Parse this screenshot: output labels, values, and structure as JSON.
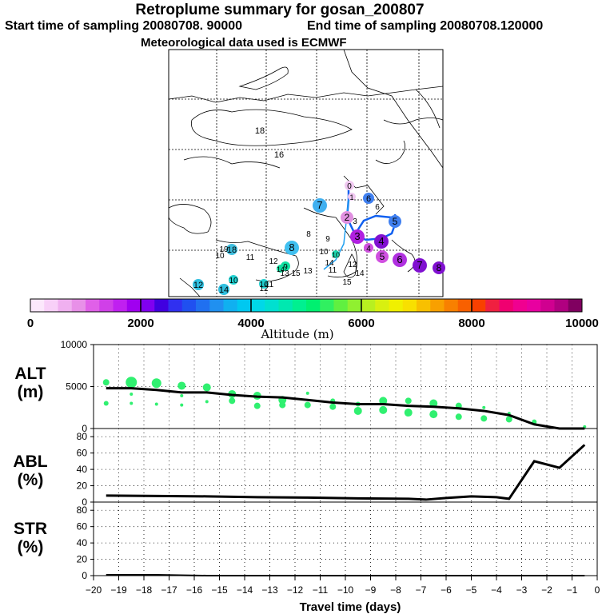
{
  "header": {
    "title": "Retroplume summary for gosan_200807",
    "start": "Start time of sampling 20080708. 90000",
    "end": "End time of sampling 20080708.120000",
    "met": "Meteorological data used is ECMWF"
  },
  "map": {
    "lat_labels": [
      {
        "text": "18"
      },
      {
        "text": "16"
      }
    ],
    "markers": [
      {
        "n": "0",
        "color": "#f0c8f0"
      },
      {
        "n": "1",
        "color": "#f0c8f0"
      },
      {
        "n": "2",
        "color": "#e090e0"
      },
      {
        "n": "3",
        "color": "#b020e0"
      },
      {
        "n": "4",
        "color": "#8010d0"
      },
      {
        "n": "4",
        "color": "#d050e0"
      },
      {
        "n": "5",
        "color": "#d050e0"
      },
      {
        "n": "6",
        "color": "#b030e0"
      },
      {
        "n": "7",
        "color": "#8010d0"
      },
      {
        "n": "8",
        "color": "#8010d0"
      },
      {
        "n": "6",
        "color": "#4080f0"
      },
      {
        "n": "5",
        "color": "#4080f0"
      },
      {
        "n": "7",
        "color": "#40b0f0"
      },
      {
        "n": "8",
        "color": "#40c0f0"
      },
      {
        "n": "18",
        "color": "#40c0e0"
      },
      {
        "n": "12",
        "color": "#30c0e0"
      },
      {
        "n": "14",
        "color": "#30c0e0"
      },
      {
        "n": "10",
        "color": "#20d0d0"
      },
      {
        "n": "16",
        "color": "#20d0d0"
      },
      {
        "n": "9",
        "color": "#10e0a0"
      },
      {
        "n": "14",
        "color": "#10e0a0"
      },
      {
        "n": "10",
        "color": "#20d8b0"
      }
    ],
    "small_labels": [
      {
        "n": "6"
      },
      {
        "n": "8"
      },
      {
        "n": "9"
      },
      {
        "n": "10"
      },
      {
        "n": "11"
      },
      {
        "n": "12"
      },
      {
        "n": "13"
      },
      {
        "n": "14"
      },
      {
        "n": "15"
      },
      {
        "n": "19"
      },
      {
        "n": "10"
      },
      {
        "n": "12"
      },
      {
        "n": "14"
      },
      {
        "n": "11"
      },
      {
        "n": "15"
      },
      {
        "n": "11"
      },
      {
        "n": "12"
      },
      {
        "n": "13"
      },
      {
        "n": "3"
      }
    ]
  },
  "colorbar": {
    "tick_labels": [
      "0",
      "2000",
      "4000",
      "6000",
      "8000",
      "10000"
    ],
    "label": "Altitude (m)",
    "colors": [
      "#fce8fc",
      "#f8d0f8",
      "#f0b0f0",
      "#e890e8",
      "#e060e8",
      "#d040e8",
      "#c020f0",
      "#a000f0",
      "#8000f0",
      "#4000e0",
      "#3030f0",
      "#2050f0",
      "#2070f0",
      "#2090f0",
      "#10b0f0",
      "#00c8f0",
      "#00d8e8",
      "#00e0d0",
      "#00e8b0",
      "#00f090",
      "#00f070",
      "#30f060",
      "#60f040",
      "#90f030",
      "#b8f020",
      "#d8f010",
      "#f0f000",
      "#f8e000",
      "#f8c000",
      "#f8a000",
      "#f88000",
      "#f86000",
      "#f84000",
      "#f02040",
      "#f00070",
      "#f00090",
      "#e800a0",
      "#d00090",
      "#b00080",
      "#800060"
    ]
  },
  "panels": {
    "alt_label": "ALT\n(m)",
    "abl_label": "ABL\n(%)",
    "str_label": "STR\n(%)",
    "xlabel": "Travel time (days)",
    "x_ticks": [
      -20,
      -19,
      -18,
      -17,
      -16,
      -15,
      -14,
      -13,
      -12,
      -11,
      -10,
      -9,
      -8,
      -7,
      -6,
      -5,
      -4,
      -3,
      -2,
      -1,
      0
    ],
    "alt_ticks": [
      0,
      5000,
      10000
    ],
    "pct_ticks": [
      0,
      20,
      40,
      60,
      80
    ]
  },
  "chart_data": [
    {
      "type": "line",
      "title": "ALT",
      "ylabel": "ALT (m)",
      "xlabel": "Travel time (days)",
      "xlim": [
        -20,
        0
      ],
      "ylim": [
        0,
        10000
      ],
      "series": [
        {
          "name": "mean altitude",
          "x": [
            -19.5,
            -18.5,
            -17.5,
            -16.5,
            -15.5,
            -14.5,
            -13.5,
            -12.5,
            -11.5,
            -10.5,
            -9.5,
            -8.5,
            -7.5,
            -6.5,
            -5.5,
            -4.5,
            -3.5,
            -2.5,
            -1.5,
            -0.5
          ],
          "y": [
            4800,
            4800,
            4600,
            4300,
            4300,
            4000,
            3800,
            3700,
            3400,
            3100,
            2900,
            2900,
            2700,
            2600,
            2400,
            2100,
            1600,
            500,
            0,
            0
          ]
        },
        {
          "name": "cluster points",
          "x": [
            -19.5,
            -19.5,
            -18.5,
            -18.5,
            -18.5,
            -17.5,
            -17.5,
            -16.5,
            -16.5,
            -16.5,
            -15.5,
            -15.5,
            -14.5,
            -14.5,
            -13.5,
            -13.5,
            -12.5,
            -12.5,
            -11.5,
            -11.5,
            -10.5,
            -10.5,
            -9.5,
            -9.5,
            -8.5,
            -8.5,
            -7.5,
            -7.5,
            -6.5,
            -6.5,
            -5.5,
            -5.5,
            -4.5,
            -4.5,
            -3.5,
            -3.5,
            -2.5,
            -0.5
          ],
          "y": [
            5500,
            3000,
            5500,
            4100,
            3000,
            5400,
            2900,
            5100,
            3900,
            2800,
            4900,
            3200,
            4100,
            3300,
            3900,
            2700,
            3400,
            2800,
            4200,
            2800,
            3300,
            2600,
            2900,
            2100,
            3300,
            2200,
            3300,
            1900,
            3000,
            1700,
            2700,
            1400,
            2500,
            1200,
            1800,
            1100,
            800,
            200
          ],
          "sizes": [
            4,
            3,
            7,
            2,
            2,
            6,
            2,
            5,
            2,
            2,
            5,
            2,
            5,
            4,
            5,
            4,
            5,
            4,
            2,
            4,
            3,
            4,
            3,
            5,
            5,
            5,
            4,
            5,
            5,
            5,
            4,
            4,
            2,
            4,
            2,
            4,
            3,
            2
          ]
        }
      ]
    },
    {
      "type": "line",
      "title": "ABL",
      "ylabel": "ABL (%)",
      "xlim": [
        -20,
        0
      ],
      "ylim": [
        0,
        90
      ],
      "series": [
        {
          "name": "ABL fraction",
          "x": [
            -19.5,
            -17.5,
            -15.5,
            -13.5,
            -11.5,
            -9.5,
            -7.5,
            -6.8,
            -6.0,
            -5.0,
            -4.0,
            -3.5,
            -2.5,
            -1.5,
            -0.5
          ],
          "y": [
            8,
            7.5,
            7,
            6,
            5.5,
            4.5,
            4,
            3,
            5,
            7,
            6,
            4,
            50,
            42,
            70
          ]
        }
      ]
    },
    {
      "type": "line",
      "title": "STR",
      "ylabel": "STR (%)",
      "xlim": [
        -20,
        0
      ],
      "ylim": [
        0,
        90
      ],
      "series": [
        {
          "name": "stratospheric fraction",
          "x": [
            -19.5,
            -17.5,
            -15.5,
            -13.5,
            -11.5,
            -9.5,
            -7.5,
            -5.5,
            -3.5,
            -1.5,
            -0.5
          ],
          "y": [
            1,
            1,
            0,
            0,
            0,
            0,
            0,
            0,
            0,
            0,
            0
          ]
        }
      ]
    }
  ]
}
